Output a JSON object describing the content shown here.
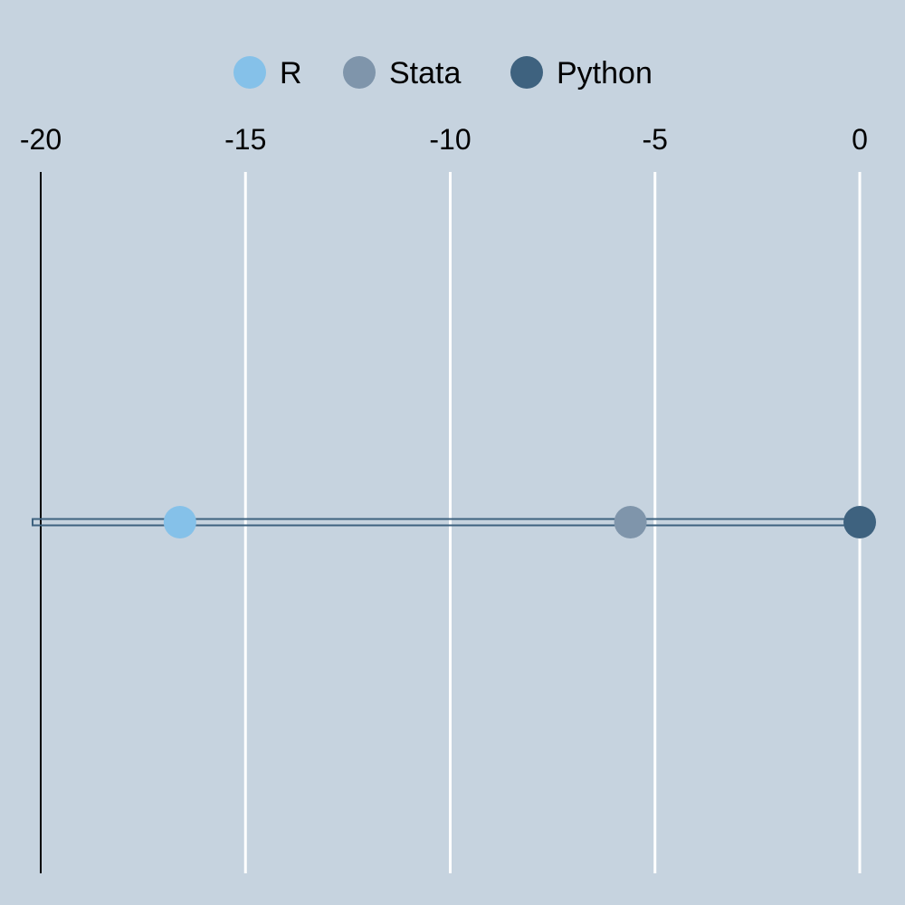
{
  "chart_data": {
    "type": "scatter",
    "title": "",
    "xlabel": "",
    "ylabel": "",
    "x_axis_position": "top",
    "xlim": [
      -20,
      0
    ],
    "xticks": [
      -20,
      -15,
      -10,
      -5,
      0
    ],
    "xtick_labels": [
      "-20",
      "-15",
      "-10",
      "-5",
      "0"
    ],
    "grid": true,
    "legend_position": "top-center",
    "series": [
      {
        "name": "R",
        "color": "#85c1e9",
        "values": [
          -16.6
        ]
      },
      {
        "name": "Stata",
        "color": "#7f95ab",
        "values": [
          -5.6
        ]
      },
      {
        "name": "Python",
        "color": "#3e627f",
        "values": [
          0
        ]
      }
    ],
    "connector_line": {
      "from": -20,
      "to": 0,
      "color": "#3e627f"
    },
    "colors": {
      "background": "#c6d3df",
      "gridline": "#ffffff",
      "axis": "#000000"
    }
  }
}
